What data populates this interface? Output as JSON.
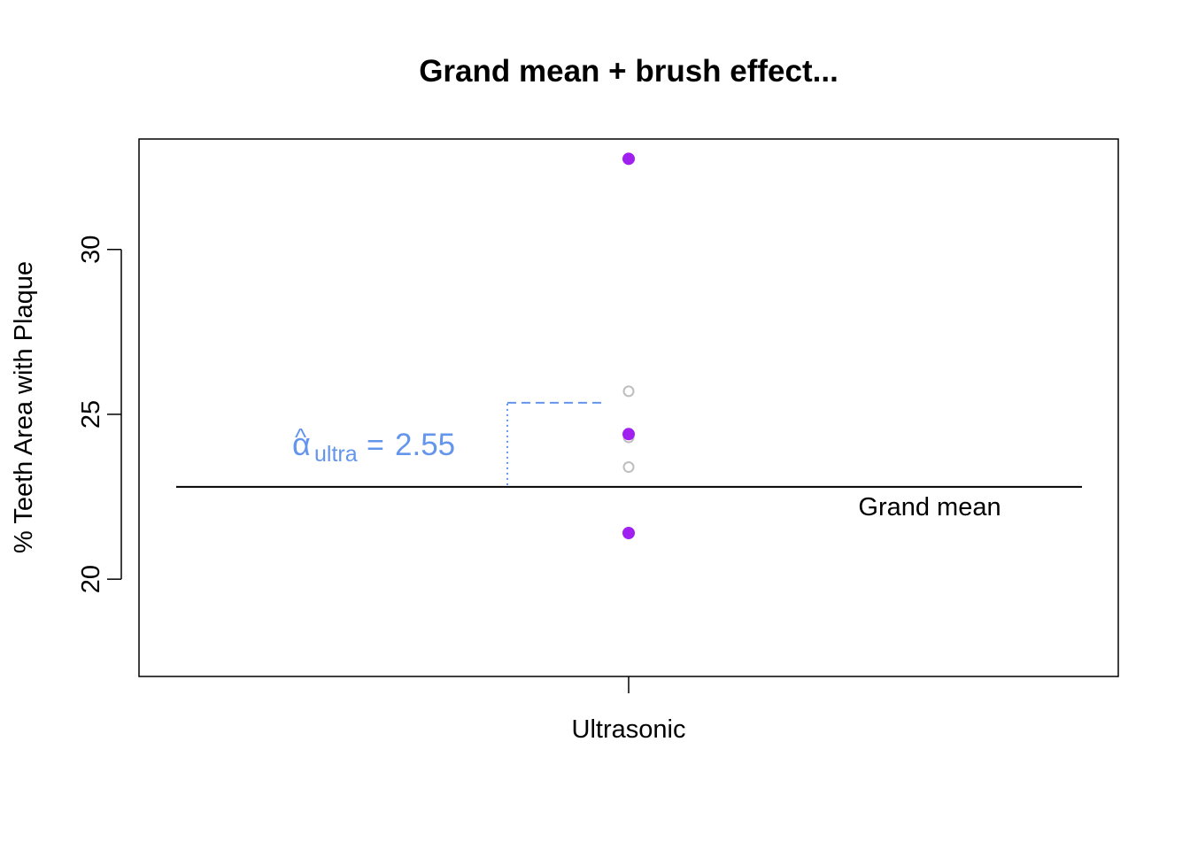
{
  "chart_data": {
    "type": "scatter",
    "title": "Grand mean + brush effect...",
    "xlabel": "",
    "ylabel": "% Teeth Area with Plaque",
    "categories": [
      "Ultrasonic"
    ],
    "ylim": [
      17.05,
      33.35
    ],
    "yticks": [
      20,
      25,
      30
    ],
    "grid": false,
    "series": [
      {
        "style": "open-circle",
        "color": "#BEBEBE",
        "category": "Ultrasonic",
        "values": [
          25.7,
          24.3,
          23.4
        ]
      },
      {
        "style": "filled-circle",
        "color": "#A020F0",
        "category": "Ultrasonic",
        "values": [
          32.75,
          24.4,
          21.4
        ]
      }
    ],
    "grand_mean": 22.8,
    "grand_mean_label": "Grand mean",
    "effect": {
      "symbol_hat": "^",
      "symbol": "α",
      "subscript": "ultra",
      "equals": "=",
      "value_text": "2.55",
      "value": 2.55,
      "color": "#6495ED"
    }
  }
}
